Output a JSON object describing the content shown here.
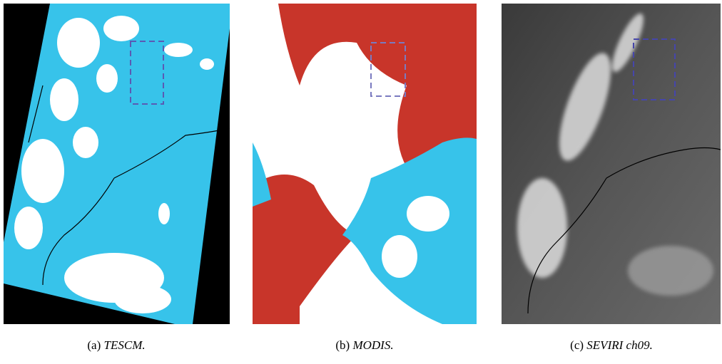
{
  "figure": {
    "panels": [
      {
        "label": "(a)",
        "caption": "TESCM."
      },
      {
        "label": "(b)",
        "caption": "MODIS."
      },
      {
        "label": "(c)",
        "caption": "SEVIRI ch09."
      }
    ]
  }
}
